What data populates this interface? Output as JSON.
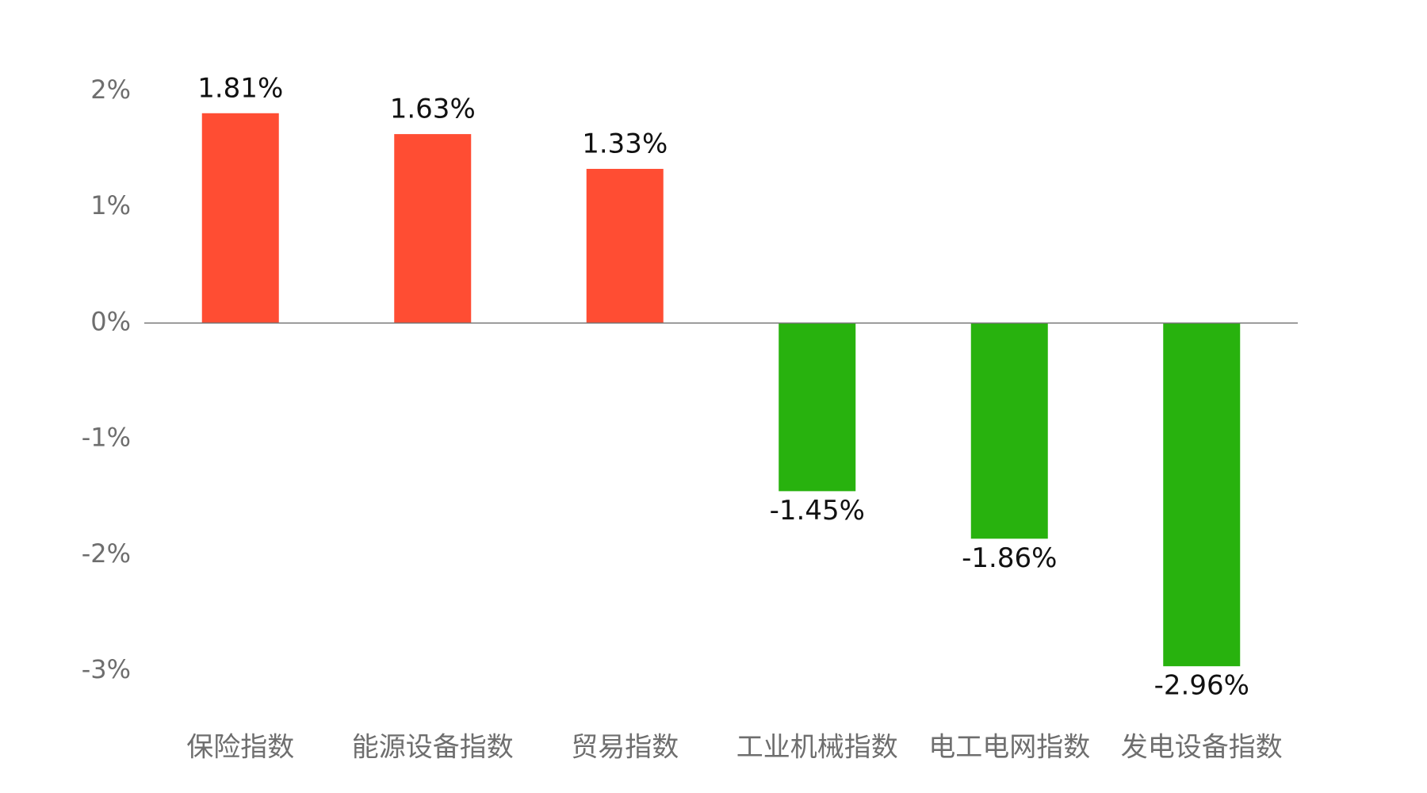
{
  "chart_data": {
    "type": "bar",
    "categories": [
      "保险指数",
      "能源设备指数",
      "贸易指数",
      "工业机械指数",
      "电工电网指数",
      "发电设备指数"
    ],
    "values": [
      1.81,
      1.63,
      1.33,
      -1.45,
      -1.86,
      -2.96
    ],
    "value_labels": [
      "1.81%",
      "1.63%",
      "1.33%",
      "-1.45%",
      "-1.86%",
      "-2.96%"
    ],
    "colors": [
      "#ff4d33",
      "#ff4d33",
      "#ff4d33",
      "#28b20e",
      "#28b20e",
      "#28b20e"
    ],
    "ylim": [
      -3,
      2
    ],
    "yticks": [
      {
        "value": -3,
        "label": "-3%"
      },
      {
        "value": -2,
        "label": "-2%"
      },
      {
        "value": -1,
        "label": "-1%"
      },
      {
        "value": 0,
        "label": "0%"
      },
      {
        "value": 1,
        "label": "1%"
      },
      {
        "value": 2,
        "label": "2%"
      }
    ],
    "grid": false
  }
}
